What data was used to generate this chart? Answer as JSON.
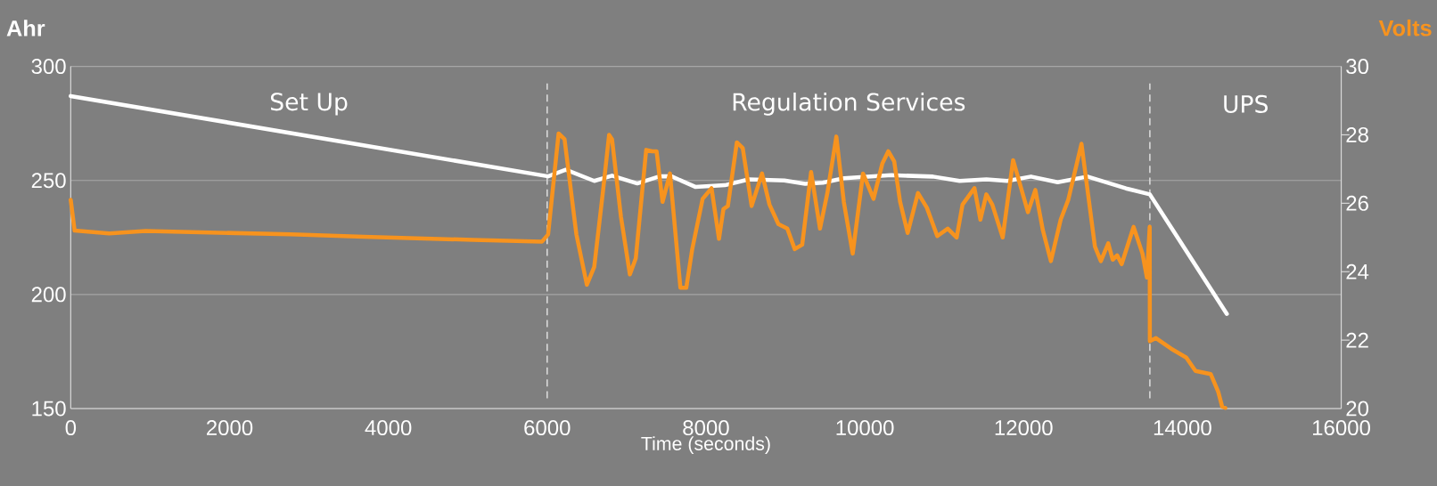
{
  "chart_data": {
    "type": "line",
    "xlabel": "Time (seconds)",
    "ylabel": "Ahr",
    "y2label": "Volts",
    "xlim": [
      0,
      16000
    ],
    "xticks": [
      0,
      2000,
      4000,
      6000,
      8000,
      10000,
      12000,
      14000,
      16000
    ],
    "ylim": [
      150,
      300
    ],
    "yticks": [
      150,
      200,
      250,
      300
    ],
    "y2lim": [
      20,
      30
    ],
    "y2ticks": [
      20,
      22,
      24,
      26,
      28,
      30
    ],
    "grid": "y",
    "series": [
      {
        "color": "#ffffff",
        "x": [
          0,
          6012,
          6235,
          6593,
          6817,
          7135,
          7415,
          7566,
          7865,
          8238,
          8538,
          8987,
          9249,
          9473,
          9736,
          10334,
          10858,
          11194,
          11531,
          11794,
          12093,
          12429,
          12804,
          13290,
          13590,
          14560
        ],
        "values": [
          287,
          251.8,
          254.7,
          249.8,
          252.1,
          248.7,
          251.8,
          251.8,
          247.2,
          247.9,
          250.5,
          250,
          248.5,
          249,
          251,
          252.3,
          251.7,
          249.8,
          250.5,
          249.8,
          251.7,
          249.2,
          251.7,
          246.5,
          243.9,
          191.5
        ]
      },
      {
        "color": "#f7931e",
        "axis": "y2",
        "x": [
          0,
          49,
          484,
          943,
          2774,
          3691,
          5065,
          5936,
          6012,
          6144,
          6219,
          6368,
          6500,
          6593,
          6705,
          6780,
          6817,
          6929,
          7042,
          7116,
          7247,
          7322,
          7378,
          7453,
          7547,
          7678,
          7752,
          7827,
          7958,
          8070,
          8164,
          8220,
          8276,
          8389,
          8463,
          8575,
          8706,
          8800,
          8912,
          9024,
          9118,
          9212,
          9324,
          9436,
          9529,
          9642,
          9736,
          9848,
          9978,
          10110,
          10222,
          10296,
          10371,
          10445,
          10540,
          10670,
          10782,
          10913,
          11045,
          11157,
          11231,
          11381,
          11456,
          11531,
          11606,
          11737,
          11868,
          12055,
          12148,
          12242,
          12344,
          12467,
          12561,
          12729,
          12898,
          12973,
          13066,
          13122,
          13178,
          13235,
          13385,
          13497,
          13553,
          13588,
          13590,
          13667,
          13858,
          14049,
          14165,
          14356,
          14451,
          14500,
          14540
        ],
        "values": [
          26.1,
          25.2,
          25.12,
          25.19,
          25.09,
          25.02,
          24.93,
          24.88,
          25.09,
          28.04,
          27.87,
          25.09,
          23.62,
          24.14,
          26.39,
          28.0,
          27.87,
          25.61,
          23.92,
          24.39,
          27.56,
          27.52,
          27.52,
          26.04,
          26.87,
          23.53,
          23.53,
          24.66,
          26.13,
          26.44,
          24.96,
          25.83,
          25.92,
          27.78,
          27.61,
          25.92,
          26.87,
          25.96,
          25.39,
          25.26,
          24.66,
          24.79,
          26.91,
          25.26,
          26.3,
          27.95,
          26.04,
          24.53,
          26.87,
          26.13,
          27.17,
          27.52,
          27.22,
          26.04,
          25.13,
          26.3,
          25.87,
          25.04,
          25.26,
          25.0,
          25.96,
          26.44,
          25.52,
          26.26,
          25.96,
          25.0,
          27.26,
          25.74,
          26.39,
          25.22,
          24.31,
          25.52,
          26.09,
          27.74,
          24.74,
          24.31,
          24.83,
          24.35,
          24.48,
          24.22,
          25.31,
          24.53,
          23.83,
          25.31,
          21.97,
          22.06,
          21.75,
          21.49,
          21.1,
          21.01,
          20.49,
          20.06,
          20.02
        ]
      }
    ],
    "ref_lines": [
      {
        "axis": "x",
        "value": 6000,
        "color": "#d9d9d9",
        "line_style": "dashed"
      },
      {
        "axis": "x",
        "value": 13590,
        "color": "#d9d9d9",
        "line_style": "dashed"
      }
    ],
    "annotations": [
      "Set Up",
      "Regulation Services",
      "UPS"
    ]
  }
}
